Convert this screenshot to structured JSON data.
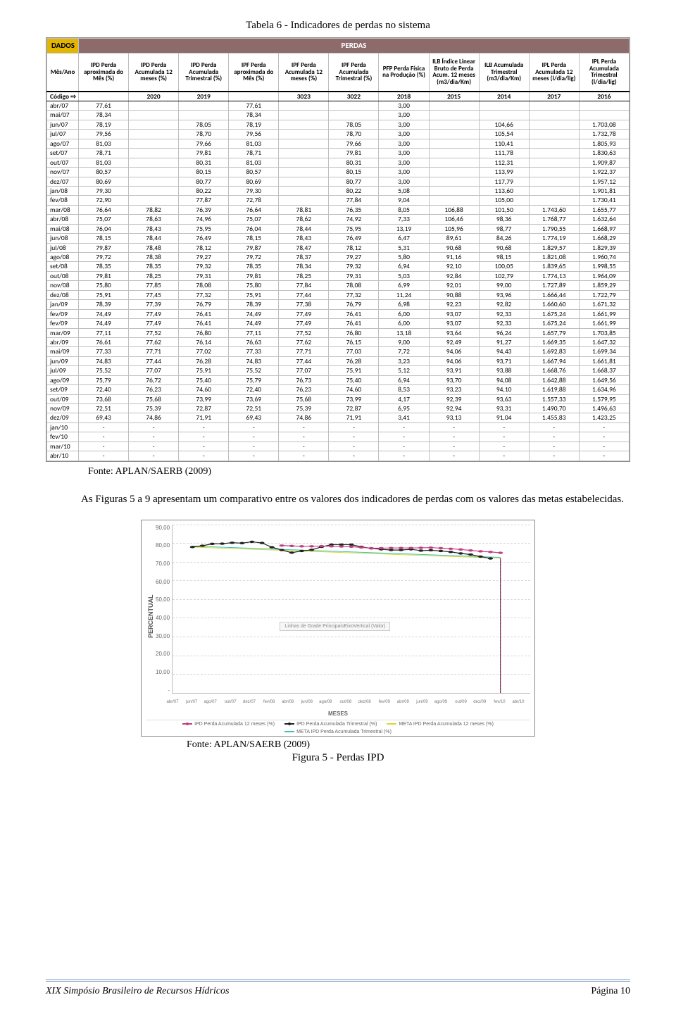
{
  "title_top": "Tabela 6 - Indicadores de perdas no sistema",
  "fonte_table": "Fonte: APLAN/SAERB (2009)",
  "body_para": "As Figuras 5 a 9 apresentam um comparativo entre os valores dos indicadores de perdas com os valores das metas estabelecidas.",
  "fonte_chart": "Fonte: APLAN/SAERB (2009)",
  "fig_caption": "Figura 5 - Perdas IPD",
  "footer_left": "XIX Simpósio Brasileiro de Recursos Hídricos",
  "footer_right": "Página 10",
  "table": {
    "dados_label": "DADOS",
    "perdas_label": "PERDAS",
    "cols": [
      "Mês/Ano",
      "IPD Perda aproximada do Mês (%)",
      "IPD Perda Acumulada 12 meses (%)",
      "IPD Perda Acumulada Trimestral (%)",
      "IPF Perda aproximada do Mês (%)",
      "IPF Perda Acumulada 12 meses (%)",
      "IPF Perda Acumulada Trimestral (%)",
      "PFP Perda Física na Produção (%)",
      "ILB Índice Linear Bruto de Perda Acum. 12 meses (m3/dia/Km)",
      "ILB Acumulada Trimestral (m3/dia/Km)",
      "IPL Perda Acumulada 12 meses (l/dia/lig)",
      "IPL Perda Acumulada Trimestral (l/dia/lig)"
    ],
    "codigo_label": "Código ⇨",
    "codigos": [
      "",
      "2020",
      "2019",
      "",
      "3023",
      "3022",
      "2018",
      "2015",
      "2014",
      "2017",
      "2016"
    ],
    "rows": [
      [
        "abr/07",
        "77,61",
        "",
        "",
        "77,61",
        "",
        "",
        "3,00",
        "",
        "",
        "",
        ""
      ],
      [
        "mai/07",
        "78,34",
        "",
        "",
        "78,34",
        "",
        "",
        "3,00",
        "",
        "",
        "",
        ""
      ],
      [
        "jun/07",
        "78,19",
        "",
        "78,05",
        "78,19",
        "",
        "78,05",
        "3,00",
        "",
        "104,66",
        "",
        "1.703,08"
      ],
      [
        "jul/07",
        "79,56",
        "",
        "78,70",
        "79,56",
        "",
        "78,70",
        "3,00",
        "",
        "105,54",
        "",
        "1.732,78"
      ],
      [
        "ago/07",
        "81,03",
        "",
        "79,66",
        "81,03",
        "",
        "79,66",
        "3,00",
        "",
        "110,41",
        "",
        "1.805,93"
      ],
      [
        "set/07",
        "78,71",
        "",
        "79,81",
        "78,71",
        "",
        "79,81",
        "3,00",
        "",
        "111,78",
        "",
        "1.830,63"
      ],
      [
        "out/07",
        "81,03",
        "",
        "80,31",
        "81,03",
        "",
        "80,31",
        "3,00",
        "",
        "112,31",
        "",
        "1.909,87"
      ],
      [
        "nov/07",
        "80,57",
        "",
        "80,15",
        "80,57",
        "",
        "80,15",
        "3,00",
        "",
        "113,99",
        "",
        "1.922,37"
      ],
      [
        "dez/07",
        "80,69",
        "",
        "80,77",
        "80,69",
        "",
        "80,77",
        "3,00",
        "",
        "117,79",
        "",
        "1.957,12"
      ],
      [
        "jan/08",
        "79,30",
        "",
        "80,22",
        "79,30",
        "",
        "80,22",
        "5,08",
        "",
        "113,60",
        "",
        "1.901,81"
      ],
      [
        "fev/08",
        "72,90",
        "",
        "77,87",
        "72,78",
        "",
        "77,84",
        "9,04",
        "",
        "105,00",
        "",
        "1.730,41"
      ],
      [
        "mar/08",
        "76,64",
        "78,82",
        "76,39",
        "76,64",
        "78,81",
        "76,35",
        "8,05",
        "106,88",
        "101,50",
        "1.743,60",
        "1.655,77"
      ],
      [
        "abr/08",
        "75,07",
        "78,63",
        "74,96",
        "75,07",
        "78,62",
        "74,92",
        "7,33",
        "106,46",
        "98,36",
        "1.768,77",
        "1.632,64"
      ],
      [
        "mai/08",
        "76,04",
        "78,43",
        "75,95",
        "76,04",
        "78,44",
        "75,95",
        "13,19",
        "105,96",
        "98,77",
        "1.790,55",
        "1.668,97"
      ],
      [
        "jun/08",
        "78,15",
        "78,44",
        "76,49",
        "78,15",
        "78,43",
        "76,49",
        "6,47",
        "89,61",
        "84,26",
        "1.774,19",
        "1.668,29"
      ],
      [
        "jul/08",
        "79,87",
        "78,48",
        "78,12",
        "79,87",
        "78,47",
        "78,12",
        "5,31",
        "90,68",
        "90,68",
        "1.829,57",
        "1.829,39"
      ],
      [
        "ago/08",
        "79,72",
        "78,38",
        "79,27",
        "79,72",
        "78,37",
        "79,27",
        "5,80",
        "91,16",
        "98,15",
        "1.821,08",
        "1.960,74"
      ],
      [
        "set/08",
        "78,35",
        "78,35",
        "79,32",
        "78,35",
        "78,34",
        "79,32",
        "6,94",
        "92,10",
        "100,05",
        "1.839,65",
        "1.998,55"
      ],
      [
        "out/08",
        "79,81",
        "78,25",
        "79,31",
        "79,81",
        "78,25",
        "79,31",
        "5,03",
        "92,84",
        "102,79",
        "1.774,13",
        "1.964,09"
      ],
      [
        "nov/08",
        "75,80",
        "77,85",
        "78,08",
        "75,80",
        "77,84",
        "78,08",
        "6,99",
        "92,01",
        "99,00",
        "1.727,89",
        "1.859,29"
      ],
      [
        "dez/08",
        "75,91",
        "77,45",
        "77,32",
        "75,91",
        "77,44",
        "77,32",
        "11,24",
        "90,88",
        "93,96",
        "1.666,44",
        "1.722,79"
      ],
      [
        "jan/09",
        "78,39",
        "77,39",
        "76,79",
        "78,39",
        "77,38",
        "76,79",
        "6,98",
        "92,23",
        "92,82",
        "1.660,60",
        "1.671,32"
      ],
      [
        "fev/09",
        "74,49",
        "77,49",
        "76,41",
        "74,49",
        "77,49",
        "76,41",
        "6,00",
        "93,07",
        "92,33",
        "1.675,24",
        "1.661,99"
      ],
      [
        "fev/09",
        "74,49",
        "77,49",
        "76,41",
        "74,49",
        "77,49",
        "76,41",
        "6,00",
        "93,07",
        "92,33",
        "1.675,24",
        "1.661,99"
      ],
      [
        "mar/09",
        "77,11",
        "77,52",
        "76,80",
        "77,11",
        "77,52",
        "76,80",
        "13,18",
        "93,64",
        "96,24",
        "1.657,79",
        "1.703,85"
      ],
      [
        "abr/09",
        "76,61",
        "77,62",
        "76,14",
        "76,63",
        "77,62",
        "76,15",
        "9,00",
        "92,49",
        "91,27",
        "1.669,35",
        "1.647,32"
      ],
      [
        "mai/09",
        "77,33",
        "77,71",
        "77,02",
        "77,33",
        "77,71",
        "77,03",
        "7,72",
        "94,06",
        "94,43",
        "1.692,83",
        "1.699,34"
      ],
      [
        "jun/09",
        "74,83",
        "77,44",
        "76,28",
        "74,83",
        "77,44",
        "76,28",
        "3,23",
        "94,06",
        "93,71",
        "1.667,94",
        "1.661,81"
      ],
      [
        "jul/09",
        "75,52",
        "77,07",
        "75,91",
        "75,52",
        "77,07",
        "75,91",
        "5,12",
        "93,91",
        "93,88",
        "1.668,76",
        "1.668,37"
      ],
      [
        "ago/09",
        "75,79",
        "76,72",
        "75,40",
        "75,79",
        "76,73",
        "75,40",
        "6,94",
        "93,70",
        "94,08",
        "1.642,88",
        "1.649,56"
      ],
      [
        "set/09",
        "72,40",
        "76,23",
        "74,60",
        "72,40",
        "76,23",
        "74,60",
        "8,53",
        "93,23",
        "94,10",
        "1.619,88",
        "1.634,96"
      ],
      [
        "out/09",
        "73,68",
        "75,68",
        "73,99",
        "73,69",
        "75,68",
        "73,99",
        "4,17",
        "92,39",
        "93,63",
        "1.557,33",
        "1.579,95"
      ],
      [
        "nov/09",
        "72,51",
        "75,39",
        "72,87",
        "72,51",
        "75,39",
        "72,87",
        "6,95",
        "92,94",
        "93,31",
        "1.490,70",
        "1.496,63"
      ],
      [
        "dez/09",
        "69,43",
        "74,86",
        "71,91",
        "69,43",
        "74,86",
        "71,91",
        "3,41",
        "93,13",
        "91,04",
        "1.455,83",
        "1.423,25"
      ],
      [
        "jan/10",
        "-",
        "-",
        "-",
        "-",
        "-",
        "-",
        "-",
        "-",
        "-",
        "-",
        "-"
      ],
      [
        "fev/10",
        "-",
        "-",
        "-",
        "-",
        "-",
        "-",
        "-",
        "-",
        "-",
        "-",
        "-"
      ],
      [
        "mar/10",
        "-",
        "-",
        "-",
        "-",
        "-",
        "-",
        "-",
        "-",
        "-",
        "-",
        "-"
      ],
      [
        "abr/10",
        "-",
        "-",
        "-",
        "-",
        "-",
        "-",
        "-",
        "-",
        "-",
        "-",
        "-"
      ]
    ]
  },
  "chart": {
    "y_label": "PERCENTUAL",
    "y_ticks": [
      "90,00",
      "80,00",
      "70,00",
      "60,00",
      "50,00",
      "40,00",
      "30,00",
      "20,00",
      "10,00",
      "-"
    ],
    "y_max": 90,
    "x_label": "MESES",
    "x_ticks": [
      "abr/07",
      "jun/07",
      "ago/07",
      "out/07",
      "dez/07",
      "fev/08",
      "abr/08",
      "jun/08",
      "ago/08",
      "out/08",
      "dez/08",
      "fev/09",
      "abr/09",
      "jun/09",
      "ago/09",
      "out/09",
      "dez/09",
      "fev/10",
      "abr/10"
    ],
    "inner_legend": "Linhas de Grade PrincipaisEixoVertical (Valor)",
    "legend": [
      {
        "label": "IPD Perda Acumulada 12 meses (%)",
        "color": "#c04080",
        "marker": true
      },
      {
        "label": "IPD Perda Acumulada Trimestral (%)",
        "color": "#202020",
        "marker": true
      },
      {
        "label": "META IPD Perda Acumulada 12 meses (%)",
        "color": "#d8d830",
        "marker": false
      },
      {
        "label": "META IPD Perda Acumulada Trimestral (%)",
        "color": "#40c0c0",
        "marker": false
      }
    ],
    "series_pink_y": [
      78.8,
      78.6,
      78.4,
      78.4,
      78.5,
      78.4,
      78.3,
      78.2,
      77.8,
      77.4,
      77.4,
      77.5,
      77.5,
      77.5,
      77.6,
      77.7,
      77.4,
      77.1,
      76.7,
      76.2,
      75.7,
      75.4,
      74.9
    ],
    "series_black_y": [
      78.0,
      78.7,
      79.7,
      79.8,
      80.3,
      80.1,
      80.8,
      80.2,
      77.9,
      76.4,
      75.0,
      75.9,
      76.5,
      78.1,
      79.3,
      79.3,
      79.3,
      78.1,
      77.3,
      76.8,
      76.4,
      76.4,
      76.8,
      76.1,
      76.3,
      75.9,
      75.4,
      74.6,
      74.0,
      72.9,
      71.9
    ],
    "drop_x_index": 33,
    "colors": {
      "pink": "#c04080",
      "black": "#202020",
      "yellow": "#d8d830",
      "cyan": "#40c0c0",
      "grid": "#d8d8d8"
    }
  }
}
